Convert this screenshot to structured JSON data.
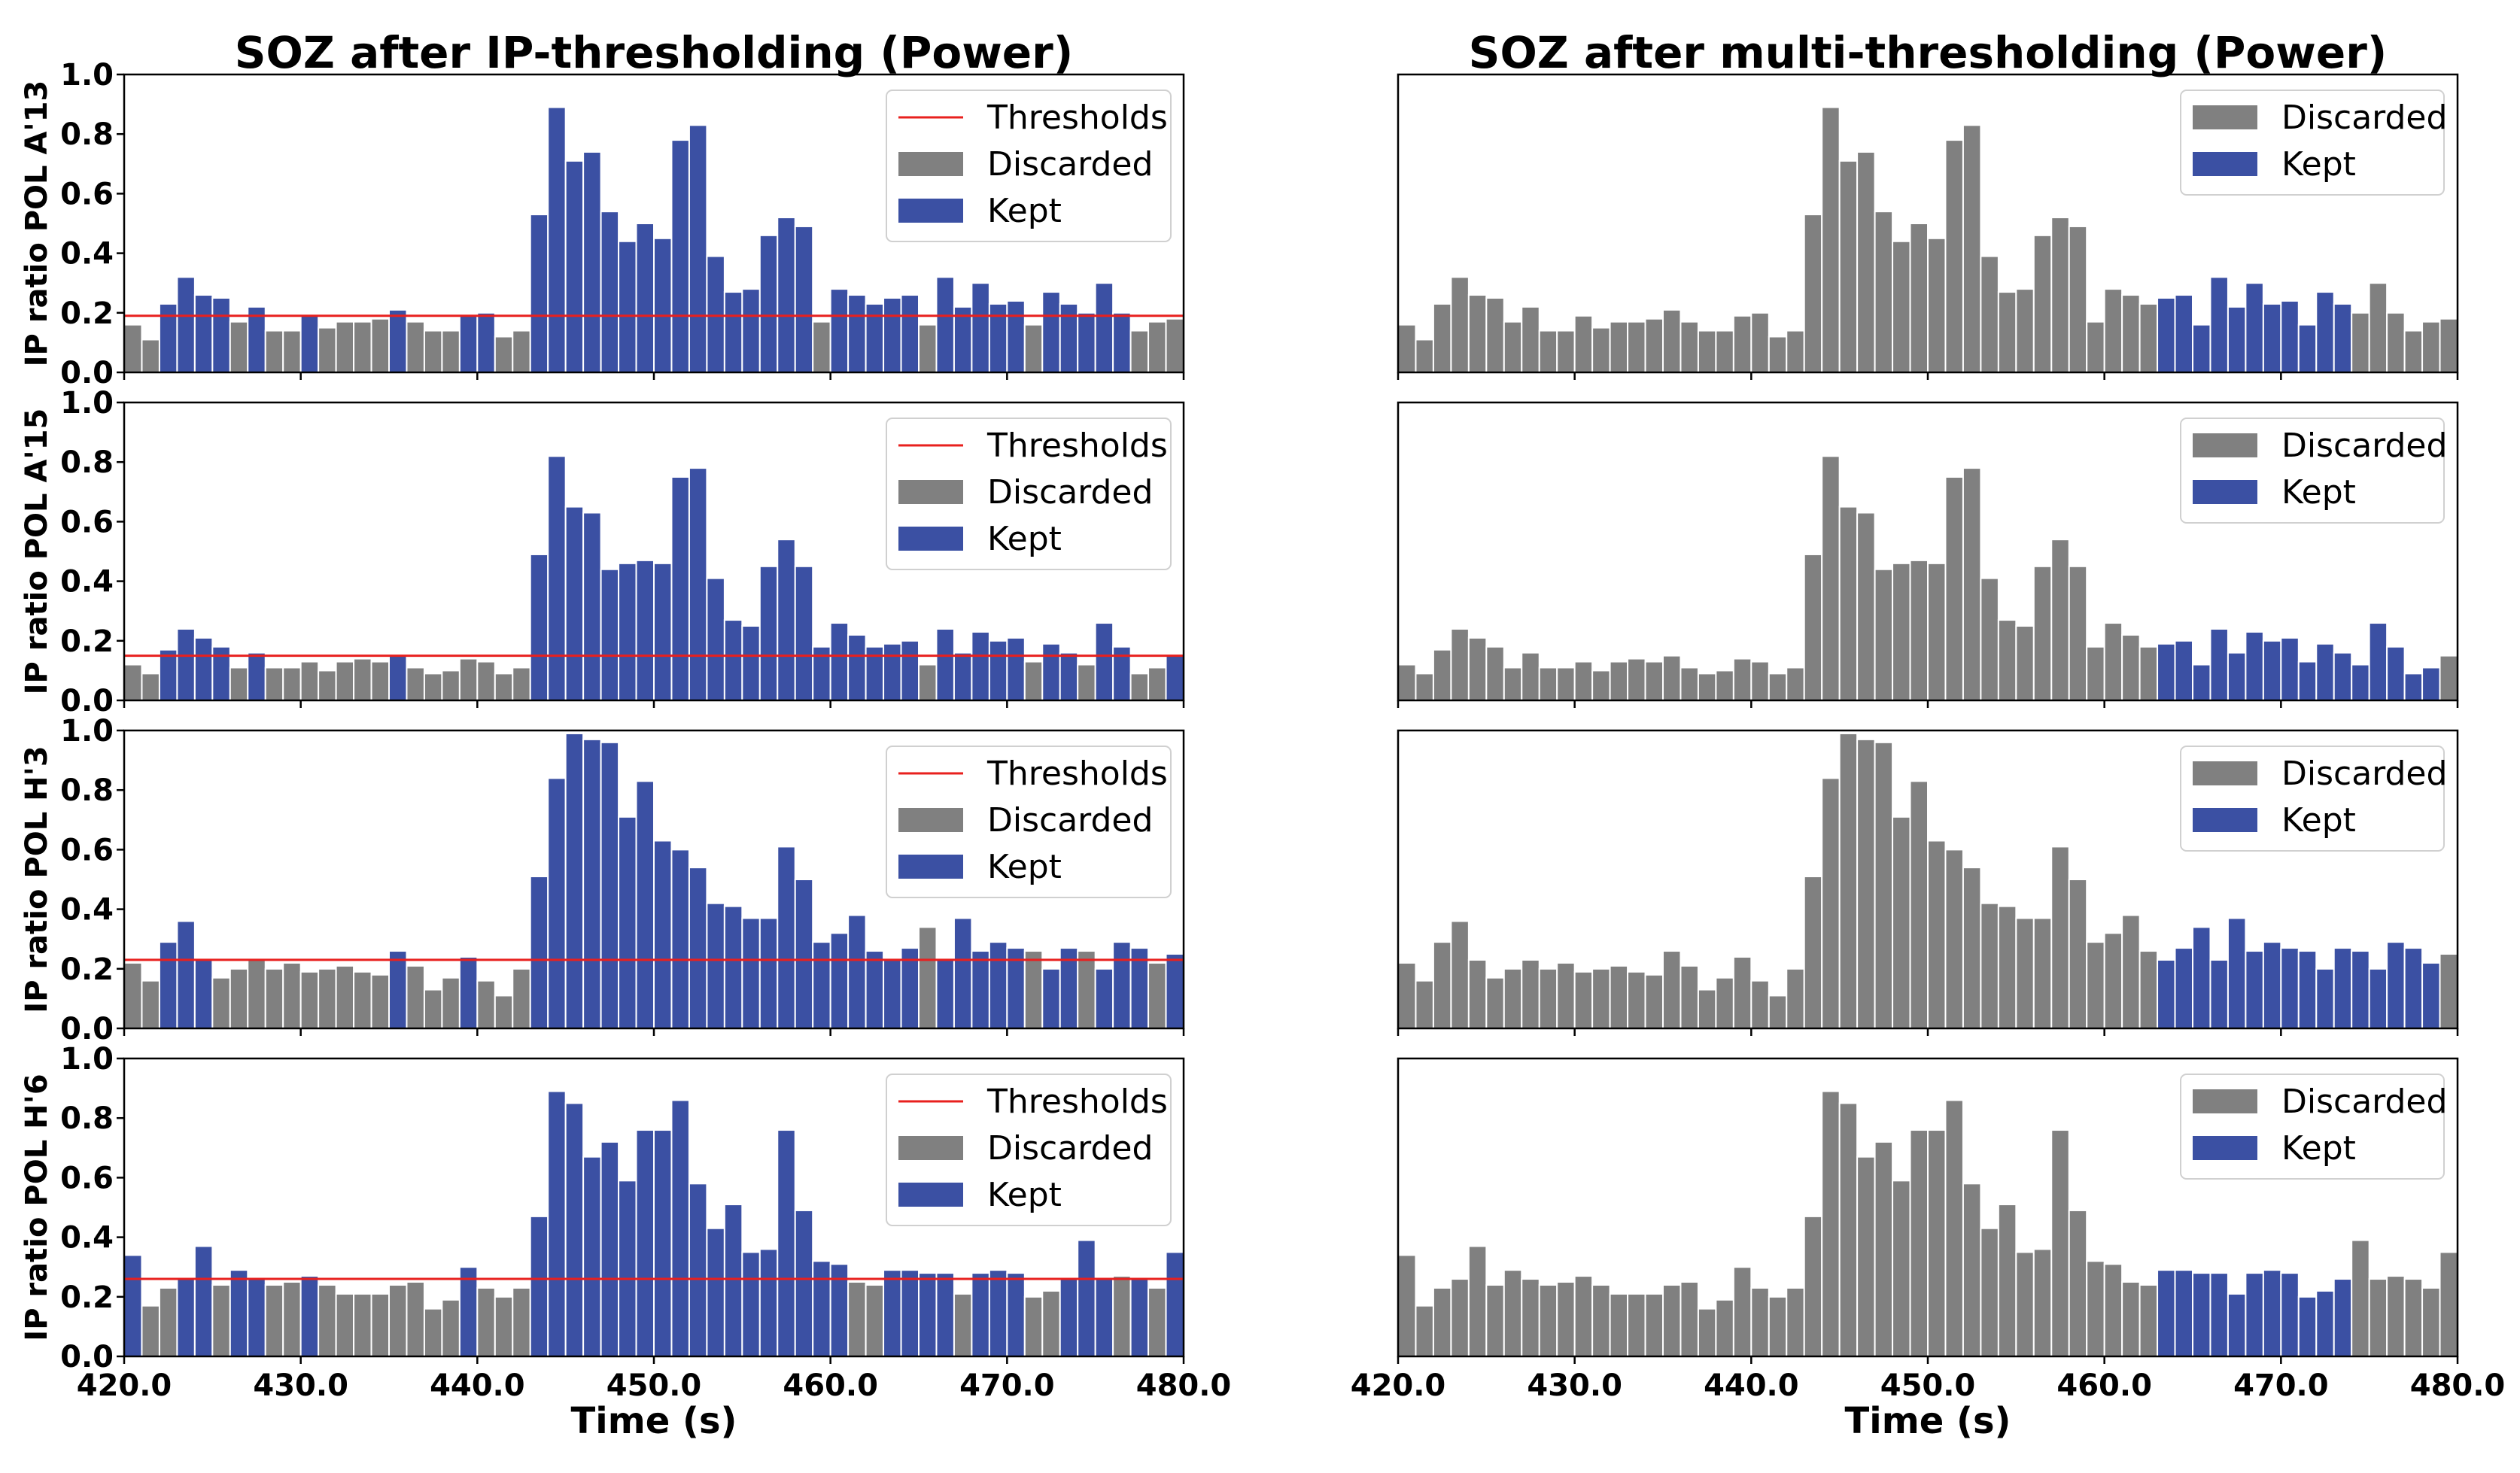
{
  "colors": {
    "kept": "#3b50a3",
    "discarded": "#808080",
    "threshold": "#e8201e",
    "axis": "#000000",
    "legend_border": "#d0d0d0"
  },
  "labels": {
    "xlabel": "Time (s)",
    "legend_thresholds": "Thresholds",
    "legend_discarded": "Discarded",
    "legend_kept": "Kept"
  },
  "chart_data": {
    "type": "bar",
    "columns": [
      {
        "title": "SOZ after IP-thresholding (Power)",
        "method": "ip",
        "show_threshold": true,
        "show_ylabels": true
      },
      {
        "title": "SOZ after multi-thresholding (Power)",
        "method": "multi",
        "show_threshold": false,
        "show_ylabels": false
      }
    ],
    "x_start": 420.0,
    "bar_width_s": 1.0,
    "xlim": [
      420.0,
      480.0
    ],
    "ylim": [
      0.0,
      1.0
    ],
    "xticks": [
      "420.0",
      "430.0",
      "440.0",
      "450.0",
      "460.0",
      "470.0",
      "480.0"
    ],
    "xtick_values": [
      420,
      430,
      440,
      450,
      460,
      470,
      480
    ],
    "yticks": [
      "0.0",
      "0.2",
      "0.4",
      "0.6",
      "0.8",
      "1.0"
    ],
    "ytick_values": [
      0,
      0.2,
      0.4,
      0.6,
      0.8,
      1.0
    ],
    "rows": [
      {
        "ylabel": "IP ratio POL A'13",
        "threshold": 0.19,
        "multi_kept_range": [
          43,
          53
        ],
        "values": [
          0.16,
          0.11,
          0.23,
          0.32,
          0.26,
          0.25,
          0.17,
          0.22,
          0.14,
          0.14,
          0.19,
          0.15,
          0.17,
          0.17,
          0.18,
          0.21,
          0.17,
          0.14,
          0.14,
          0.19,
          0.2,
          0.12,
          0.14,
          0.53,
          0.89,
          0.71,
          0.74,
          0.54,
          0.44,
          0.5,
          0.45,
          0.78,
          0.83,
          0.39,
          0.27,
          0.28,
          0.46,
          0.52,
          0.49,
          0.17,
          0.28,
          0.26,
          0.23,
          0.25,
          0.26,
          0.16,
          0.32,
          0.22,
          0.3,
          0.23,
          0.24,
          0.16,
          0.27,
          0.23,
          0.2,
          0.3,
          0.2,
          0.14,
          0.17,
          0.18
        ],
        "kept": [
          0,
          0,
          1,
          1,
          1,
          1,
          0,
          1,
          0,
          0,
          1,
          0,
          0,
          0,
          0,
          1,
          0,
          0,
          0,
          1,
          1,
          0,
          0,
          1,
          1,
          1,
          1,
          1,
          1,
          1,
          1,
          1,
          1,
          1,
          1,
          1,
          1,
          1,
          1,
          0,
          1,
          1,
          1,
          1,
          1,
          0,
          1,
          1,
          1,
          1,
          1,
          0,
          1,
          1,
          1,
          1,
          1,
          0,
          0,
          0
        ]
      },
      {
        "ylabel": "IP ratio POL A'15",
        "threshold": 0.15,
        "multi_kept_range": [
          43,
          58
        ],
        "values": [
          0.12,
          0.09,
          0.17,
          0.24,
          0.21,
          0.18,
          0.11,
          0.16,
          0.11,
          0.11,
          0.13,
          0.1,
          0.13,
          0.14,
          0.13,
          0.15,
          0.11,
          0.09,
          0.1,
          0.14,
          0.13,
          0.09,
          0.11,
          0.49,
          0.82,
          0.65,
          0.63,
          0.44,
          0.46,
          0.47,
          0.46,
          0.75,
          0.78,
          0.41,
          0.27,
          0.25,
          0.45,
          0.54,
          0.45,
          0.18,
          0.26,
          0.22,
          0.18,
          0.19,
          0.2,
          0.12,
          0.24,
          0.16,
          0.23,
          0.2,
          0.21,
          0.13,
          0.19,
          0.16,
          0.12,
          0.26,
          0.18,
          0.09,
          0.11,
          0.15
        ],
        "kept": [
          0,
          0,
          1,
          1,
          1,
          1,
          0,
          1,
          0,
          0,
          0,
          0,
          0,
          0,
          0,
          1,
          0,
          0,
          0,
          0,
          0,
          0,
          0,
          1,
          1,
          1,
          1,
          1,
          1,
          1,
          1,
          1,
          1,
          1,
          1,
          1,
          1,
          1,
          1,
          1,
          1,
          1,
          1,
          1,
          1,
          0,
          1,
          1,
          1,
          1,
          1,
          0,
          1,
          1,
          0,
          1,
          1,
          0,
          0,
          1
        ]
      },
      {
        "ylabel": "IP ratio POL H'3",
        "threshold": 0.23,
        "multi_kept_range": [
          43,
          58
        ],
        "values": [
          0.22,
          0.16,
          0.29,
          0.36,
          0.23,
          0.17,
          0.2,
          0.23,
          0.2,
          0.22,
          0.19,
          0.2,
          0.21,
          0.19,
          0.18,
          0.26,
          0.21,
          0.13,
          0.17,
          0.24,
          0.16,
          0.11,
          0.2,
          0.51,
          0.84,
          0.99,
          0.97,
          0.96,
          0.71,
          0.83,
          0.63,
          0.6,
          0.54,
          0.42,
          0.41,
          0.37,
          0.37,
          0.61,
          0.5,
          0.29,
          0.32,
          0.38,
          0.26,
          0.23,
          0.27,
          0.34,
          0.23,
          0.37,
          0.26,
          0.29,
          0.27,
          0.26,
          0.2,
          0.27,
          0.26,
          0.2,
          0.29,
          0.27,
          0.22,
          0.25
        ],
        "kept": [
          0,
          0,
          1,
          1,
          1,
          0,
          0,
          0,
          0,
          0,
          0,
          0,
          0,
          0,
          0,
          1,
          0,
          0,
          0,
          1,
          0,
          0,
          0,
          1,
          1,
          1,
          1,
          1,
          1,
          1,
          1,
          1,
          1,
          1,
          1,
          1,
          1,
          1,
          1,
          1,
          1,
          1,
          1,
          1,
          1,
          0,
          1,
          1,
          1,
          1,
          1,
          0,
          1,
          1,
          0,
          1,
          1,
          1,
          0,
          1
        ]
      },
      {
        "ylabel": "IP ratio POL H'6",
        "threshold": 0.26,
        "multi_kept_range": [
          43,
          53
        ],
        "values": [
          0.34,
          0.17,
          0.23,
          0.26,
          0.37,
          0.24,
          0.29,
          0.26,
          0.24,
          0.25,
          0.27,
          0.24,
          0.21,
          0.21,
          0.21,
          0.24,
          0.25,
          0.16,
          0.19,
          0.3,
          0.23,
          0.2,
          0.23,
          0.47,
          0.89,
          0.85,
          0.67,
          0.72,
          0.59,
          0.76,
          0.76,
          0.86,
          0.58,
          0.43,
          0.51,
          0.35,
          0.36,
          0.76,
          0.49,
          0.32,
          0.31,
          0.25,
          0.24,
          0.29,
          0.29,
          0.28,
          0.28,
          0.21,
          0.28,
          0.29,
          0.28,
          0.2,
          0.22,
          0.26,
          0.39,
          0.26,
          0.27,
          0.26,
          0.23,
          0.35
        ],
        "kept": [
          1,
          0,
          0,
          1,
          1,
          0,
          1,
          1,
          0,
          0,
          1,
          0,
          0,
          0,
          0,
          0,
          0,
          0,
          0,
          1,
          0,
          0,
          0,
          1,
          1,
          1,
          1,
          1,
          1,
          1,
          1,
          1,
          1,
          1,
          1,
          1,
          1,
          1,
          1,
          1,
          1,
          0,
          0,
          1,
          1,
          1,
          1,
          0,
          1,
          1,
          1,
          0,
          0,
          1,
          1,
          1,
          0,
          1,
          0,
          1
        ]
      }
    ]
  }
}
